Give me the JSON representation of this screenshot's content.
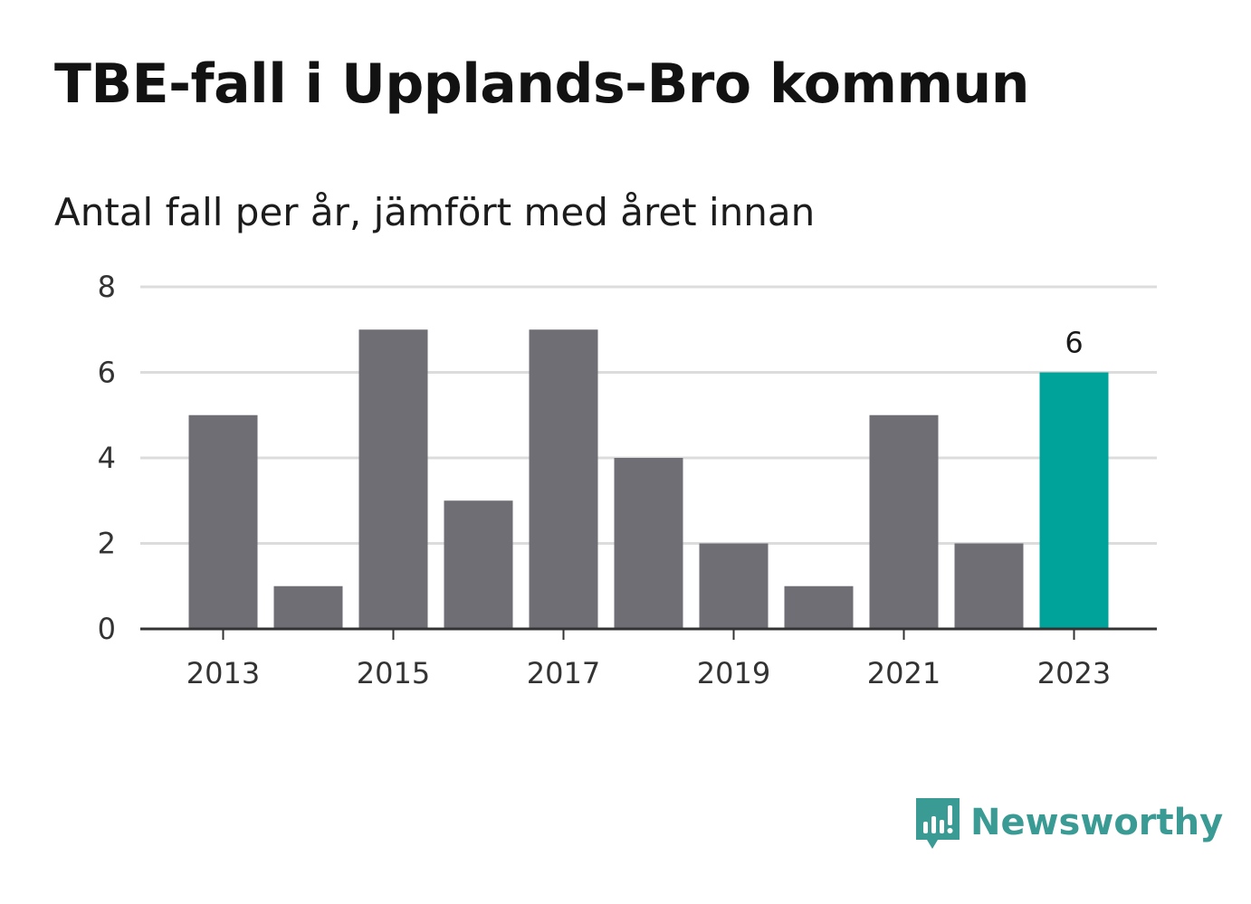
{
  "title": "TBE-fall i Upplands-Bro kommun",
  "subtitle": "Antal fall per år, jämfört med året innan",
  "brand": {
    "name": "Newsworthy",
    "icon": "newsworthy-logo-icon"
  },
  "colors": {
    "bar": "#6f6e74",
    "highlight": "#00a39a",
    "grid": "#dcdcdc",
    "axis": "#333333",
    "brand": "#3a9a94"
  },
  "chart_data": {
    "type": "bar",
    "title": "TBE-fall i Upplands-Bro kommun",
    "subtitle": "Antal fall per år, jämfört med året innan",
    "xlabel": "",
    "ylabel": "",
    "categories": [
      "2013",
      "2014",
      "2015",
      "2016",
      "2017",
      "2018",
      "2019",
      "2020",
      "2021",
      "2022",
      "2023"
    ],
    "values": [
      5,
      1,
      7,
      3,
      7,
      4,
      2,
      1,
      5,
      2,
      6
    ],
    "x_tick_labels": [
      "2013",
      "2015",
      "2017",
      "2019",
      "2021",
      "2023"
    ],
    "y_ticks": [
      0,
      2,
      4,
      6,
      8
    ],
    "ylim": [
      0,
      8
    ],
    "grid": true,
    "legend": "none",
    "highlight_category": "2023",
    "data_labels": [
      {
        "category": "2023",
        "text": "6"
      }
    ]
  }
}
